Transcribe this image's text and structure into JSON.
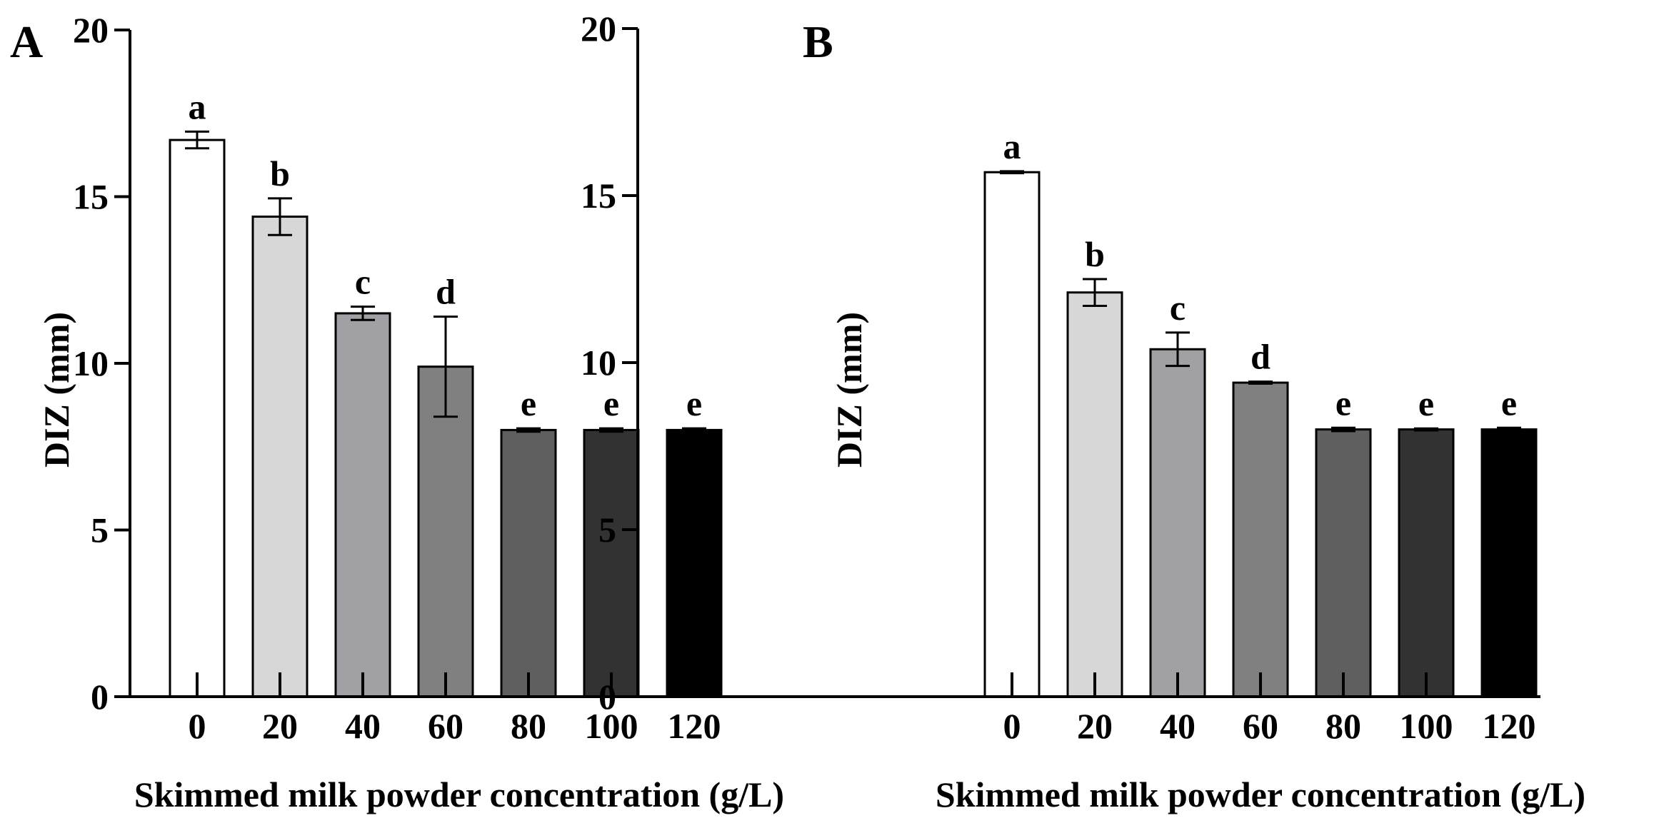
{
  "chart_data": [
    {
      "type": "bar",
      "panel": "A",
      "categories": [
        "0",
        "20",
        "40",
        "60",
        "80",
        "100",
        "120"
      ],
      "values": [
        16.7,
        14.4,
        11.5,
        9.9,
        8.0,
        8.0,
        8.0
      ],
      "errors": [
        0.25,
        0.55,
        0.2,
        1.5,
        0.05,
        0.05,
        0.05
      ],
      "significance": [
        "a",
        "b",
        "c",
        "d",
        "e",
        "e",
        "e"
      ],
      "bar_colors": [
        "#ffffff",
        "#d7d7d7",
        "#a0a0a5",
        "#808080",
        "#5f5f5f",
        "#323232",
        "#000000"
      ],
      "xlabel": "Skimmed milk powder concentration (g/L)",
      "ylabel": "DIZ (mm)",
      "ylim": [
        0,
        20
      ],
      "yticks": [
        0,
        5,
        10,
        15,
        20
      ],
      "grid": false
    },
    {
      "type": "bar",
      "panel": "B",
      "categories": [
        "0",
        "20",
        "40",
        "60",
        "80",
        "100",
        "120"
      ],
      "values": [
        15.7,
        12.1,
        10.4,
        9.4,
        8.0,
        8.0,
        8.0
      ],
      "errors": [
        0.03,
        0.4,
        0.5,
        0.03,
        0.05,
        0.03,
        0.05
      ],
      "significance": [
        "a",
        "b",
        "c",
        "d",
        "e",
        "e",
        "e"
      ],
      "bar_colors": [
        "#ffffff",
        "#d7d7d7",
        "#a0a0a5",
        "#808080",
        "#5f5f5f",
        "#323232",
        "#000000"
      ],
      "xlabel": "Skimmed milk powder concentration (g/L)",
      "ylabel": "DIZ (mm)",
      "ylim": [
        0,
        20
      ],
      "yticks": [
        0,
        5,
        10,
        15,
        20
      ],
      "grid": false
    }
  ]
}
